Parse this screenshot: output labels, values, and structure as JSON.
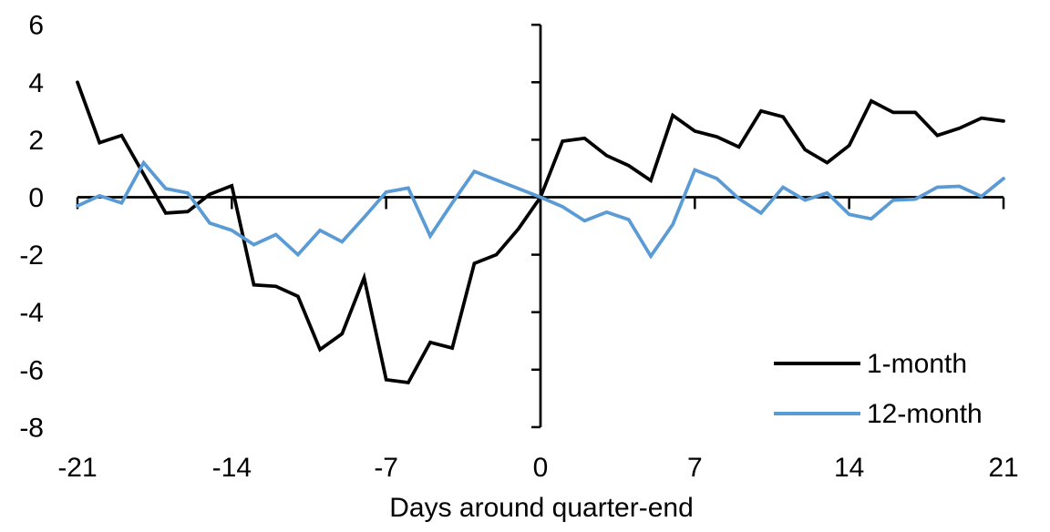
{
  "chart_data": {
    "type": "line",
    "title": "",
    "xlabel": "Days around quarter-end",
    "ylabel": "",
    "xlim": [
      -21,
      21
    ],
    "ylim": [
      -8,
      6
    ],
    "x_ticks": [
      -21,
      -14,
      -7,
      0,
      7,
      14,
      21
    ],
    "y_ticks": [
      6,
      4,
      2,
      0,
      -2,
      -4,
      -6,
      -8
    ],
    "grid": false,
    "legend_position": "inside-bottom-right",
    "x": [
      -21,
      -20,
      -19,
      -18,
      -17,
      -16,
      -15,
      -14,
      -13,
      -12,
      -11,
      -10,
      -9,
      -8,
      -7,
      -6,
      -5,
      -4,
      -3,
      -2,
      -1,
      0,
      1,
      2,
      3,
      4,
      5,
      6,
      7,
      8,
      9,
      10,
      11,
      12,
      13,
      14,
      15,
      16,
      17,
      18,
      19,
      20,
      21
    ],
    "series": [
      {
        "name": "1-month",
        "color": "#000000",
        "values": [
          4.0,
          1.9,
          2.15,
          0.8,
          -0.55,
          -0.5,
          0.1,
          0.4,
          -3.05,
          -3.1,
          -3.45,
          -5.3,
          -4.75,
          -2.8,
          -6.35,
          -6.45,
          -5.05,
          -5.25,
          -2.3,
          -2.0,
          -1.1,
          0.0,
          1.95,
          2.05,
          1.45,
          1.1,
          0.58,
          2.85,
          2.3,
          2.1,
          1.75,
          3.0,
          2.8,
          1.65,
          1.2,
          1.8,
          3.35,
          2.95,
          2.95,
          2.15,
          2.4,
          2.75,
          2.65
        ]
      },
      {
        "name": "12-month",
        "color": "#5B9BD5",
        "values": [
          -0.3,
          0.05,
          -0.2,
          1.2,
          0.3,
          0.15,
          -0.9,
          -1.15,
          -1.65,
          -1.3,
          -2.0,
          -1.15,
          -1.55,
          -0.7,
          0.18,
          0.32,
          -1.35,
          -0.2,
          0.9,
          0.6,
          0.3,
          0.0,
          -0.33,
          -0.82,
          -0.52,
          -0.78,
          -2.05,
          -0.95,
          0.95,
          0.65,
          -0.05,
          -0.55,
          0.35,
          -0.1,
          0.15,
          -0.6,
          -0.75,
          -0.1,
          -0.07,
          0.35,
          0.38,
          0.03,
          0.65
        ]
      }
    ]
  }
}
